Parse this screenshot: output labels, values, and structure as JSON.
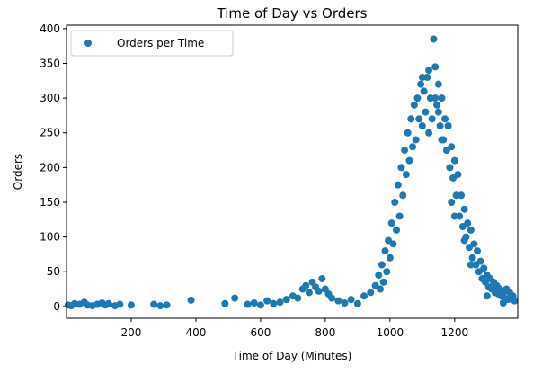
{
  "chart_data": {
    "type": "scatter",
    "title": "Time of Day vs Orders",
    "x_label": "Time of Day (Minutes)",
    "y_label": "Orders",
    "xlim": [
      0,
      1395
    ],
    "ylim": [
      -17,
      405
    ],
    "xticks": [
      200,
      400,
      600,
      800,
      1000,
      1200
    ],
    "yticks": [
      0,
      50,
      100,
      150,
      200,
      250,
      300,
      350,
      400
    ],
    "grid": false,
    "legend_position": "upper left",
    "series": [
      {
        "name": "Orders per Time",
        "color": "#1f77b4",
        "x": [
          5,
          15,
          25,
          40,
          55,
          65,
          80,
          95,
          110,
          120,
          130,
          150,
          165,
          200,
          270,
          290,
          310,
          385,
          490,
          520,
          560,
          580,
          600,
          620,
          640,
          660,
          680,
          700,
          715,
          730,
          740,
          750,
          760,
          770,
          780,
          790,
          800,
          810,
          820,
          840,
          860,
          880,
          900,
          920,
          940,
          955,
          965,
          975,
          985,
          995,
          1005,
          1015,
          1025,
          1035,
          1045,
          1055,
          1065,
          1075,
          1085,
          1095,
          1105,
          1115,
          1125,
          1135,
          1140,
          1145,
          1150,
          1155,
          1165,
          1175,
          1185,
          1195,
          1205,
          1215,
          1225,
          1235,
          1245,
          1255,
          1265,
          1275,
          1285,
          1295,
          1305,
          1315,
          1325,
          1335,
          1345,
          1355,
          1365,
          1375,
          1385,
          1060,
          1080,
          1100,
          1120,
          1110,
          1130,
          1150,
          1160,
          1170,
          1180,
          1190,
          1200,
          1210,
          1220,
          1230,
          1240,
          1250,
          1260,
          1270,
          1280,
          1290,
          1300,
          1310,
          1320,
          1330,
          1340,
          1350,
          1360,
          1370,
          1380,
          1070,
          1090,
          1050,
          1040,
          1030,
          1020,
          1010,
          1000,
          990,
          980,
          970,
          1120,
          1140,
          1100,
          1160,
          1200,
          1250,
          1300,
          1350,
          1190,
          1230
        ],
        "y": [
          2,
          1,
          4,
          3,
          6,
          2,
          1,
          3,
          5,
          2,
          4,
          1,
          3,
          2,
          3,
          1,
          2,
          9,
          4,
          12,
          3,
          5,
          2,
          8,
          4,
          6,
          10,
          15,
          12,
          25,
          30,
          20,
          35,
          28,
          22,
          40,
          25,
          18,
          12,
          8,
          5,
          10,
          4,
          15,
          20,
          30,
          45,
          60,
          80,
          95,
          120,
          150,
          175,
          200,
          225,
          250,
          270,
          290,
          300,
          320,
          310,
          330,
          300,
          385,
          345,
          290,
          280,
          260,
          240,
          225,
          200,
          185,
          160,
          130,
          115,
          100,
          85,
          70,
          60,
          50,
          40,
          35,
          28,
          25,
          20,
          18,
          15,
          12,
          10,
          14,
          8,
          210,
          240,
          260,
          250,
          280,
          270,
          320,
          300,
          270,
          260,
          230,
          210,
          190,
          160,
          140,
          120,
          110,
          90,
          80,
          65,
          55,
          45,
          40,
          35,
          30,
          25,
          20,
          25,
          20,
          15,
          230,
          270,
          190,
          160,
          130,
          110,
          90,
          70,
          50,
          35,
          25,
          340,
          300,
          330,
          240,
          130,
          60,
          15,
          5,
          150,
          95
        ]
      }
    ]
  }
}
